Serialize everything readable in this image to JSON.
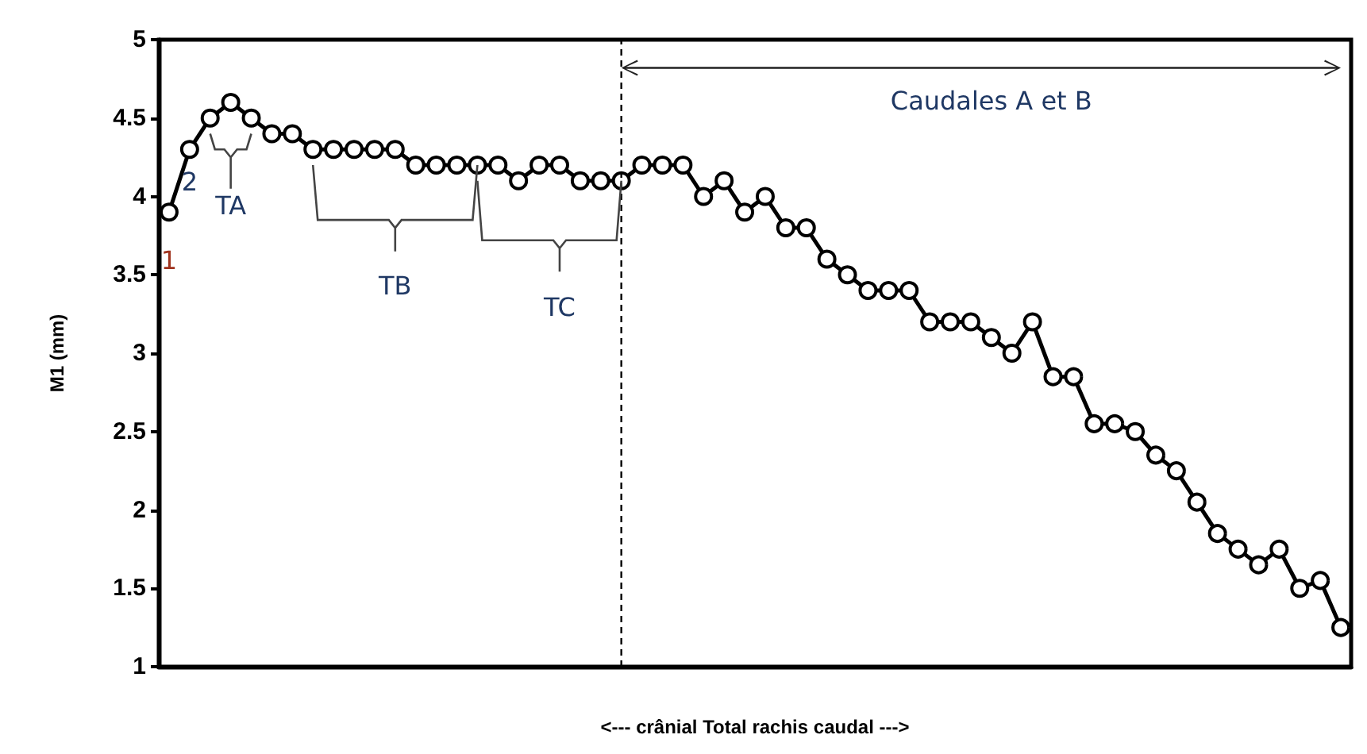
{
  "chart_data": {
    "type": "line",
    "ylabel": "M1 (mm)",
    "xlabel": "<--- crânial Total rachis caudal --->",
    "categories": [
      null,
      null,
      null,
      null,
      null,
      null,
      null,
      null,
      null,
      null,
      null,
      null,
      null,
      null,
      null,
      null,
      null,
      null,
      null,
      null,
      null,
      null,
      null,
      null,
      null,
      null,
      null,
      null,
      null,
      null,
      null,
      null,
      null,
      null,
      null,
      null,
      null,
      null,
      null,
      null,
      null,
      null,
      null,
      null,
      null,
      null,
      null,
      null,
      null,
      null,
      null,
      null,
      null,
      null,
      null,
      null,
      null,
      null
    ],
    "series": [
      {
        "color": "#000000",
        "values": [
          3.9,
          4.3,
          4.5,
          4.6,
          4.5,
          4.4,
          4.4,
          4.3,
          4.3,
          4.3,
          4.3,
          4.3,
          4.2,
          4.2,
          4.2,
          4.2,
          4.2,
          4.1,
          4.2,
          4.2,
          4.1,
          4.1,
          4.1,
          4.2,
          4.2,
          4.2,
          4.0,
          4.1,
          3.9,
          4.0,
          3.8,
          3.8,
          3.6,
          3.5,
          3.4,
          3.4,
          3.4,
          3.2,
          3.2,
          3.2,
          3.1,
          3.0,
          3.2,
          2.85,
          2.85,
          2.55,
          2.55,
          2.5,
          2.35,
          2.25,
          2.05,
          1.85,
          1.75,
          1.65,
          1.75,
          1.5,
          1.55,
          1.25
        ]
      }
    ],
    "ylim": [
      1,
      5
    ],
    "yticks": [
      1,
      1.5,
      2,
      2.5,
      3,
      3.5,
      4,
      4.5,
      5
    ],
    "grid": false,
    "marker": "circle",
    "line_style": "solid",
    "tick_labels": "y",
    "annotations": [
      "1",
      "2",
      "TA",
      "TB",
      "TC",
      "Caudales A et B"
    ]
  }
}
